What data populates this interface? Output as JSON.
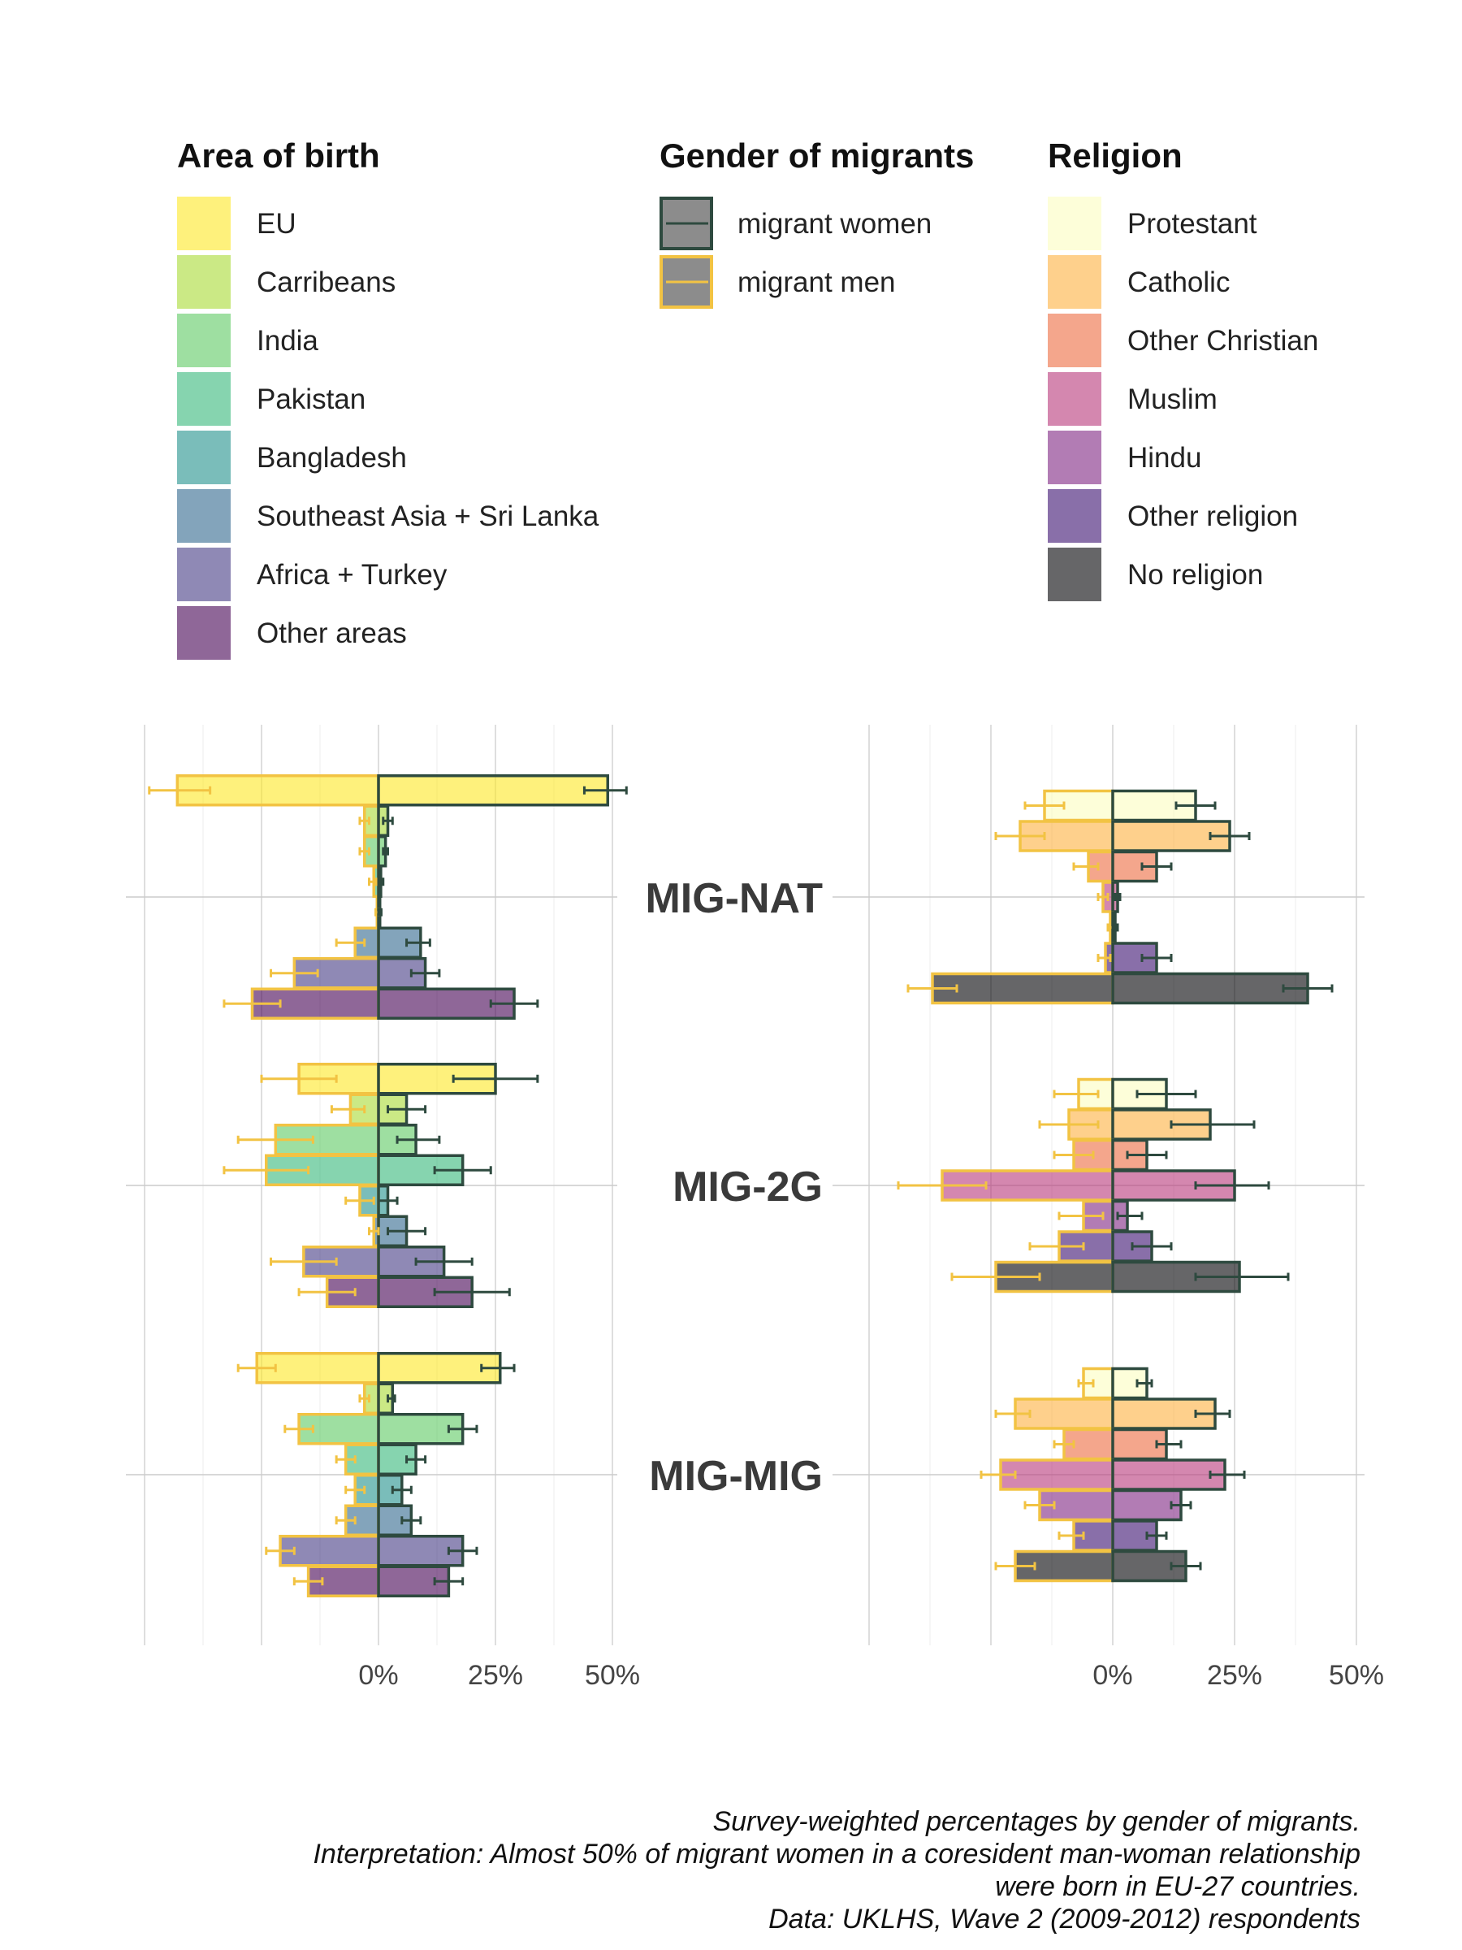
{
  "chart_data": {
    "type": "bar",
    "orientation": "horizontal-butterfly",
    "legends": {
      "area": {
        "title": "Area of birth",
        "items": [
          {
            "label": "EU",
            "color": "#FDE725"
          },
          {
            "label": "Carribeans",
            "color": "#A8DB34"
          },
          {
            "label": "India",
            "color": "#5EC962"
          },
          {
            "label": "Pakistan",
            "color": "#35B779"
          },
          {
            "label": "Bangladesh",
            "color": "#21918C"
          },
          {
            "label": "Southeast Asia + Sri Lanka",
            "color": "#31688E"
          },
          {
            "label": "Africa + Turkey",
            "color": "#443A83"
          },
          {
            "label": "Other areas",
            "color": "#440154"
          }
        ]
      },
      "gender": {
        "title": "Gender of migrants",
        "items": [
          {
            "label": "migrant women",
            "border": "#2E4A3F",
            "fill": "#8C8C8C"
          },
          {
            "label": "migrant men",
            "border": "#F2C343",
            "fill": "#8C8C8C"
          }
        ]
      },
      "religion": {
        "title": "Religion",
        "items": [
          {
            "label": "Protestant",
            "color": "#FCFDBF"
          },
          {
            "label": "Catholic",
            "color": "#FEB140"
          },
          {
            "label": "Other Christian",
            "color": "#ED6A3F"
          },
          {
            "label": "Muslim",
            "color": "#B73779"
          },
          {
            "label": "Hindu",
            "color": "#7E2482"
          },
          {
            "label": "Other religion",
            "color": "#3B0F70"
          },
          {
            "label": "No religion",
            "color": "#000004"
          }
        ]
      }
    },
    "x_ticks": [
      "0%",
      "25%",
      "50%"
    ],
    "xlim": [
      -52,
      55
    ],
    "grid": true,
    "series_encoding": {
      "migrant women": "positive (right of 0)",
      "migrant men": "negative (left of 0)"
    },
    "groups": [
      {
        "label": "MIG-NAT",
        "area": [
          {
            "category": "EU",
            "women": 49,
            "women_err": [
              44,
              53
            ],
            "men": -43,
            "men_err": [
              -49,
              -36
            ]
          },
          {
            "category": "Carribeans",
            "women": 2,
            "women_err": [
              1,
              3
            ],
            "men": -3,
            "men_err": [
              -4,
              -2
            ]
          },
          {
            "category": "India",
            "women": 1.5,
            "women_err": [
              1,
              2
            ],
            "men": -3,
            "men_err": [
              -4,
              -2
            ]
          },
          {
            "category": "Pakistan",
            "women": 0.5,
            "women_err": [
              0,
              1
            ],
            "men": -1,
            "men_err": [
              -2,
              -0.5
            ]
          },
          {
            "category": "Bangladesh",
            "women": 0.3,
            "women_err": [
              0,
              0.6
            ],
            "men": -0.3,
            "men_err": [
              -0.6,
              0
            ]
          },
          {
            "category": "Southeast Asia + Sri Lanka",
            "women": 9,
            "women_err": [
              6,
              11
            ],
            "men": -5,
            "men_err": [
              -9,
              -3
            ]
          },
          {
            "category": "Africa + Turkey",
            "women": 10,
            "women_err": [
              7,
              13
            ],
            "men": -18,
            "men_err": [
              -23,
              -13
            ]
          },
          {
            "category": "Other areas",
            "women": 29,
            "women_err": [
              24,
              34
            ],
            "men": -27,
            "men_err": [
              -33,
              -21
            ]
          }
        ],
        "religion": [
          {
            "category": "Protestant",
            "women": 17,
            "women_err": [
              13,
              21
            ],
            "men": -14,
            "men_err": [
              -18,
              -10
            ]
          },
          {
            "category": "Catholic",
            "women": 24,
            "women_err": [
              20,
              28
            ],
            "men": -19,
            "men_err": [
              -24,
              -14
            ]
          },
          {
            "category": "Other Christian",
            "women": 9,
            "women_err": [
              6,
              12
            ],
            "men": -5,
            "men_err": [
              -8,
              -3
            ]
          },
          {
            "category": "Muslim",
            "women": 1,
            "women_err": [
              0.5,
              1.5
            ],
            "men": -2,
            "men_err": [
              -3,
              -1
            ]
          },
          {
            "category": "Hindu",
            "women": 0.5,
            "women_err": [
              0,
              1
            ],
            "men": -0.5,
            "men_err": [
              -1,
              0
            ]
          },
          {
            "category": "Other religion",
            "women": 9,
            "women_err": [
              6,
              12
            ],
            "men": -1.5,
            "men_err": [
              -3,
              -0.5
            ]
          },
          {
            "category": "No religion",
            "women": 40,
            "women_err": [
              35,
              45
            ],
            "men": -37,
            "men_err": [
              -42,
              -32
            ]
          }
        ]
      },
      {
        "label": "MIG-2G",
        "area": [
          {
            "category": "EU",
            "women": 25,
            "women_err": [
              16,
              34
            ],
            "men": -17,
            "men_err": [
              -25,
              -9
            ]
          },
          {
            "category": "Carribeans",
            "women": 6,
            "women_err": [
              2,
              10
            ],
            "men": -6,
            "men_err": [
              -10,
              -3
            ]
          },
          {
            "category": "India",
            "women": 8,
            "women_err": [
              4,
              13
            ],
            "men": -22,
            "men_err": [
              -30,
              -14
            ]
          },
          {
            "category": "Pakistan",
            "women": 18,
            "women_err": [
              12,
              24
            ],
            "men": -24,
            "men_err": [
              -33,
              -15
            ]
          },
          {
            "category": "Bangladesh",
            "women": 2,
            "women_err": [
              0,
              4
            ],
            "men": -4,
            "men_err": [
              -7,
              -1
            ]
          },
          {
            "category": "Southeast Asia + Sri Lanka",
            "women": 6,
            "women_err": [
              2,
              10
            ],
            "men": -1,
            "men_err": [
              -2,
              0
            ]
          },
          {
            "category": "Africa + Turkey",
            "women": 14,
            "women_err": [
              8,
              20
            ],
            "men": -16,
            "men_err": [
              -23,
              -9
            ]
          },
          {
            "category": "Other areas",
            "women": 20,
            "women_err": [
              12,
              28
            ],
            "men": -11,
            "men_err": [
              -17,
              -5
            ]
          }
        ],
        "religion": [
          {
            "category": "Protestant",
            "women": 11,
            "women_err": [
              5,
              17
            ],
            "men": -7,
            "men_err": [
              -12,
              -3
            ]
          },
          {
            "category": "Catholic",
            "women": 20,
            "women_err": [
              12,
              29
            ],
            "men": -9,
            "men_err": [
              -15,
              -3
            ]
          },
          {
            "category": "Other Christian",
            "women": 7,
            "women_err": [
              3,
              11
            ],
            "men": -8,
            "men_err": [
              -12,
              -4
            ]
          },
          {
            "category": "Muslim",
            "women": 25,
            "women_err": [
              17,
              32
            ],
            "men": -35,
            "men_err": [
              -44,
              -26
            ]
          },
          {
            "category": "Hindu",
            "women": 3,
            "women_err": [
              1,
              6
            ],
            "men": -6,
            "men_err": [
              -11,
              -2
            ]
          },
          {
            "category": "Other religion",
            "women": 8,
            "women_err": [
              4,
              12
            ],
            "men": -11,
            "men_err": [
              -17,
              -6
            ]
          },
          {
            "category": "No religion",
            "women": 26,
            "women_err": [
              17,
              36
            ],
            "men": -24,
            "men_err": [
              -33,
              -15
            ]
          }
        ]
      },
      {
        "label": "MIG-MIG",
        "area": [
          {
            "category": "EU",
            "women": 26,
            "women_err": [
              22,
              29
            ],
            "men": -26,
            "men_err": [
              -30,
              -22
            ]
          },
          {
            "category": "Carribeans",
            "women": 3,
            "women_err": [
              2,
              3.5
            ],
            "men": -3,
            "men_err": [
              -4,
              -2
            ]
          },
          {
            "category": "India",
            "women": 18,
            "women_err": [
              15,
              21
            ],
            "men": -17,
            "men_err": [
              -20,
              -14
            ]
          },
          {
            "category": "Pakistan",
            "women": 8,
            "women_err": [
              6,
              10
            ],
            "men": -7,
            "men_err": [
              -9,
              -5
            ]
          },
          {
            "category": "Bangladesh",
            "women": 5,
            "women_err": [
              3,
              7
            ],
            "men": -5,
            "men_err": [
              -7,
              -3
            ]
          },
          {
            "category": "Southeast Asia + Sri Lanka",
            "women": 7,
            "women_err": [
              5,
              9
            ],
            "men": -7,
            "men_err": [
              -9,
              -5
            ]
          },
          {
            "category": "Africa + Turkey",
            "women": 18,
            "women_err": [
              15,
              21
            ],
            "men": -21,
            "men_err": [
              -24,
              -18
            ]
          },
          {
            "category": "Other areas",
            "women": 15,
            "women_err": [
              12,
              18
            ],
            "men": -15,
            "men_err": [
              -18,
              -12
            ]
          }
        ],
        "religion": [
          {
            "category": "Protestant",
            "women": 7,
            "women_err": [
              5,
              8
            ],
            "men": -6,
            "men_err": [
              -7,
              -4
            ]
          },
          {
            "category": "Catholic",
            "women": 21,
            "women_err": [
              17,
              24
            ],
            "men": -20,
            "men_err": [
              -24,
              -17
            ]
          },
          {
            "category": "Other Christian",
            "women": 11,
            "women_err": [
              9,
              14
            ],
            "men": -10,
            "men_err": [
              -12,
              -8
            ]
          },
          {
            "category": "Muslim",
            "women": 23,
            "women_err": [
              20,
              27
            ],
            "men": -23,
            "men_err": [
              -27,
              -20
            ]
          },
          {
            "category": "Hindu",
            "women": 14,
            "women_err": [
              12,
              16
            ],
            "men": -15,
            "men_err": [
              -18,
              -12
            ]
          },
          {
            "category": "Other religion",
            "women": 9,
            "women_err": [
              7,
              11
            ],
            "men": -8,
            "men_err": [
              -11,
              -6
            ]
          },
          {
            "category": "No religion",
            "women": 15,
            "women_err": [
              12,
              18
            ],
            "men": -20,
            "men_err": [
              -24,
              -16
            ]
          }
        ]
      }
    ]
  },
  "caption": [
    "Survey-weighted percentages by gender of migrants.",
    "Interpretation: Almost 50% of migrant women in a coresident man-woman relationship",
    "were born in EU-27 countries.",
    "Data: UKLHS, Wave 2 (2009-2012) respondents"
  ]
}
